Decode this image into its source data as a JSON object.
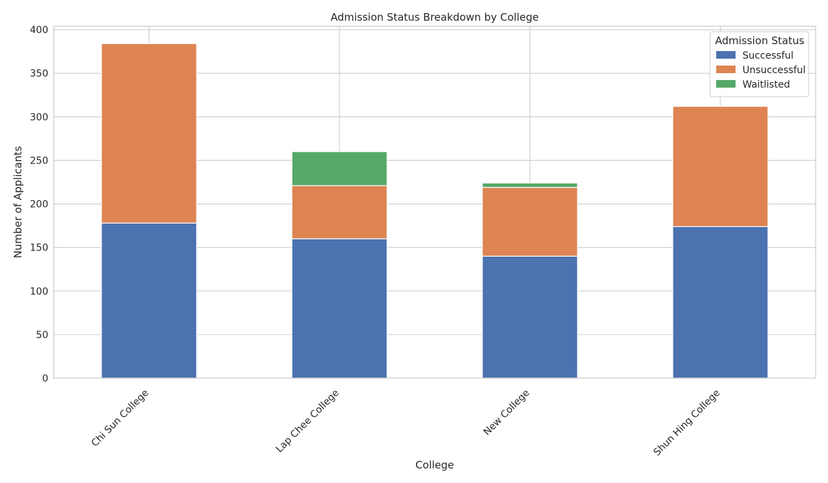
{
  "chart_data": {
    "type": "bar",
    "stacked": true,
    "title": "Admission Status Breakdown by College",
    "xlabel": "College",
    "ylabel": "Number of Applicants",
    "categories": [
      "Chi Sun College",
      "Lap Chee College",
      "New College",
      "Shun Hing College"
    ],
    "series": [
      {
        "name": "Successful",
        "color": "#4c72b0",
        "values": [
          178,
          160,
          140,
          174
        ]
      },
      {
        "name": "Unsuccessful",
        "color": "#dd8452",
        "values": [
          206,
          61,
          79,
          138
        ]
      },
      {
        "name": "Waitlisted",
        "color": "#55a868",
        "values": [
          0,
          39,
          5,
          0
        ]
      }
    ],
    "ylim": [
      0,
      404
    ],
    "yticks": [
      0,
      50,
      100,
      150,
      200,
      250,
      300,
      350,
      400
    ],
    "grid": true,
    "legend": {
      "title": "Admission Status",
      "placement": "top-right"
    }
  }
}
